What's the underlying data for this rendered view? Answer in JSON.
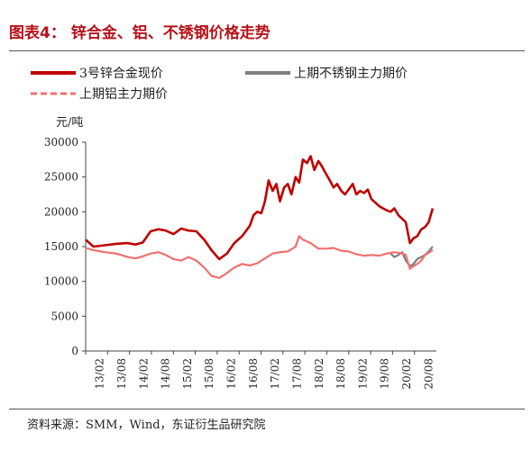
{
  "title": "图表4： 锌合金、铝、不锈钢价格走势",
  "source": "资料来源：SMM，Wind，东证衍生品研究院",
  "chart_data": {
    "type": "line",
    "ylabel": "元/吨",
    "ylim": [
      0,
      30000
    ],
    "yticks": [
      0,
      5000,
      10000,
      15000,
      20000,
      25000,
      30000
    ],
    "xlim": [
      2013.08,
      2020.75
    ],
    "xtick_labels": [
      "13/02",
      "13/08",
      "14/02",
      "14/08",
      "15/02",
      "15/08",
      "16/02",
      "16/08",
      "17/02",
      "17/08",
      "18/02",
      "18/08",
      "19/02",
      "19/08",
      "20/02",
      "20/08"
    ],
    "legend_placement": "top",
    "series": [
      {
        "name": "3号锌合金现价",
        "color": "#c00000",
        "style": "solid",
        "x": [
          2013.08,
          2013.25,
          2013.5,
          2013.75,
          2014.0,
          2014.17,
          2014.33,
          2014.5,
          2014.67,
          2014.83,
          2015.0,
          2015.17,
          2015.33,
          2015.5,
          2015.67,
          2015.83,
          2016.0,
          2016.17,
          2016.33,
          2016.5,
          2016.67,
          2016.75,
          2016.83,
          2016.92,
          2017.0,
          2017.08,
          2017.17,
          2017.25,
          2017.33,
          2017.42,
          2017.5,
          2017.58,
          2017.67,
          2017.75,
          2017.83,
          2017.92,
          2018.0,
          2018.08,
          2018.17,
          2018.25,
          2018.33,
          2018.42,
          2018.5,
          2018.58,
          2018.67,
          2018.75,
          2018.83,
          2018.92,
          2019.0,
          2019.08,
          2019.17,
          2019.25,
          2019.33,
          2019.42,
          2019.5,
          2019.58,
          2019.67,
          2019.75,
          2019.83,
          2019.92,
          2020.0,
          2020.08,
          2020.17,
          2020.25,
          2020.33,
          2020.42,
          2020.5,
          2020.58,
          2020.67
        ],
        "y": [
          16000,
          15000,
          15200,
          15400,
          15500,
          15300,
          15600,
          17200,
          17500,
          17300,
          16800,
          17600,
          17300,
          17200,
          16000,
          14500,
          13200,
          14000,
          15500,
          16500,
          18000,
          19500,
          20000,
          19800,
          21500,
          24500,
          23000,
          24000,
          21500,
          23500,
          24000,
          22500,
          25000,
          24200,
          27500,
          27000,
          28000,
          26000,
          27300,
          26500,
          25500,
          24500,
          23500,
          24000,
          23000,
          22500,
          23200,
          24000,
          22500,
          23000,
          22700,
          23200,
          21800,
          21300,
          20800,
          20500,
          20200,
          20000,
          20500,
          19500,
          19000,
          18500,
          15500,
          16200,
          16500,
          17500,
          17800,
          18500,
          20500
        ]
      },
      {
        "name": "上期不锈钢主力期价",
        "color": "#7f7f7f",
        "style": "solid",
        "x": [
          2019.75,
          2019.83,
          2019.92,
          2020.0,
          2020.08,
          2020.17,
          2020.25,
          2020.33,
          2020.42,
          2020.5,
          2020.58,
          2020.67
        ],
        "y": [
          14000,
          13500,
          13800,
          14200,
          13000,
          12200,
          12500,
          13200,
          13500,
          13800,
          14300,
          15000
        ]
      },
      {
        "name": "上期铝主力期价",
        "color": "#f07070",
        "style": "dashed",
        "x": [
          2013.08,
          2013.25,
          2013.5,
          2013.75,
          2014.0,
          2014.17,
          2014.33,
          2014.5,
          2014.67,
          2014.83,
          2015.0,
          2015.17,
          2015.33,
          2015.5,
          2015.67,
          2015.83,
          2016.0,
          2016.17,
          2016.33,
          2016.5,
          2016.67,
          2016.83,
          2017.0,
          2017.17,
          2017.33,
          2017.5,
          2017.67,
          2017.75,
          2017.83,
          2018.0,
          2018.17,
          2018.33,
          2018.5,
          2018.67,
          2018.83,
          2019.0,
          2019.17,
          2019.33,
          2019.5,
          2019.67,
          2019.83,
          2020.0,
          2020.08,
          2020.17,
          2020.25,
          2020.33,
          2020.42,
          2020.5,
          2020.58,
          2020.67
        ],
        "y": [
          14800,
          14500,
          14200,
          14000,
          13500,
          13300,
          13600,
          14000,
          14200,
          13800,
          13200,
          13000,
          13500,
          13000,
          12000,
          10800,
          10500,
          11200,
          12000,
          12500,
          12300,
          12600,
          13300,
          14000,
          14200,
          14300,
          15000,
          16500,
          16000,
          15500,
          14700,
          14700,
          14800,
          14400,
          14300,
          13900,
          13700,
          13800,
          13700,
          14000,
          14200,
          14000,
          13800,
          11800,
          12200,
          12500,
          13000,
          13800,
          14100,
          14500
        ]
      }
    ]
  }
}
